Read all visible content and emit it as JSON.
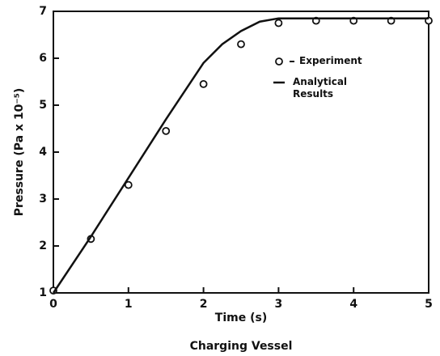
{
  "chart_data": {
    "type": "line",
    "xlabel": "Time (s)",
    "ylabel": "Pressure (Pa x 10⁻⁵)",
    "caption": "Charging Vessel",
    "xlim": [
      0,
      5
    ],
    "ylim": [
      1,
      7
    ],
    "xticks": [
      0,
      1,
      2,
      3,
      4,
      5
    ],
    "yticks": [
      1,
      2,
      3,
      4,
      5,
      6,
      7
    ],
    "series": [
      {
        "name": "Experiment",
        "type": "scatter",
        "color": "#111111",
        "x": [
          0,
          0.5,
          1,
          1.5,
          2,
          2.5,
          3,
          3.5,
          4,
          4.5,
          5
        ],
        "values": [
          1.05,
          2.15,
          3.3,
          4.45,
          5.45,
          6.3,
          6.75,
          6.8,
          6.8,
          6.8,
          6.8
        ]
      },
      {
        "name": "Analytical Results",
        "type": "line",
        "color": "#111111",
        "x": [
          0,
          0.5,
          1,
          1.5,
          2,
          2.25,
          2.5,
          2.75,
          3,
          3.5,
          4,
          4.5,
          5
        ],
        "values": [
          1,
          2.2,
          3.45,
          4.7,
          5.9,
          6.3,
          6.58,
          6.78,
          6.85,
          6.85,
          6.85,
          6.85,
          6.85
        ]
      }
    ]
  }
}
